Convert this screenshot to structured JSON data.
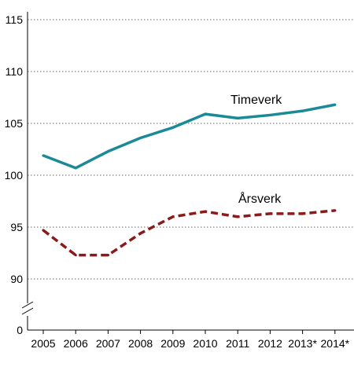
{
  "chart_data": {
    "type": "line",
    "categories": [
      "2005",
      "2006",
      "2007",
      "2008",
      "2009",
      "2010",
      "2011",
      "2012",
      "2013*",
      "2014*"
    ],
    "series": [
      {
        "name": "Timeverk",
        "values": [
          101.9,
          100.7,
          102.3,
          103.6,
          104.6,
          105.9,
          105.5,
          105.8,
          106.2,
          106.8
        ],
        "color": "#1a8a96",
        "style": "solid"
      },
      {
        "name": "Årsverk",
        "values": [
          94.7,
          92.3,
          92.3,
          94.4,
          96.0,
          96.5,
          96.0,
          96.3,
          96.3,
          96.6
        ],
        "color": "#8b1a1a",
        "style": "dashed"
      }
    ],
    "y_ticks": [
      "115",
      "110",
      "105",
      "100",
      "95",
      "90",
      "0"
    ],
    "ylim": [
      90,
      115
    ],
    "y_axis_break": true,
    "grid": "horizontal dotted",
    "legend": "inline labels"
  }
}
